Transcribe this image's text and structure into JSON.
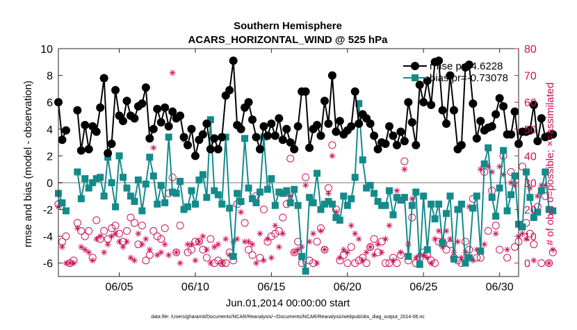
{
  "chart_data": {
    "type": "line",
    "title": [
      "Southern Hemisphere",
      "ACARS_HORIZONTAL_WIND @ 525 hPa"
    ],
    "xlabel": "Jun.01,2014 00:00:00 start",
    "ylabel": "rmse and bias (model - observation)",
    "y2label": "# of obs: o=possible; ×=assimilated",
    "footnote": "data file: /Users/gharamti/Documents/NCAR/Reanalysis/~/Documents/NCAR/Reanalysis/webpub/obs_diag_output_2014-06.nc",
    "xlim": [
      1.0,
      31.25
    ],
    "ylim": [
      -7,
      10
    ],
    "y2lim": [
      -5,
      80
    ],
    "x_ticks": [
      {
        "value": 5,
        "label": "06/05"
      },
      {
        "value": 10,
        "label": "06/10"
      },
      {
        "value": 15,
        "label": "06/15"
      },
      {
        "value": 20,
        "label": "06/20"
      },
      {
        "value": 25,
        "label": "06/25"
      },
      {
        "value": 30,
        "label": "06/30"
      }
    ],
    "y_ticks": [
      -6,
      -4,
      -2,
      0,
      2,
      4,
      6,
      8,
      10
    ],
    "y2_ticks": [
      0,
      10,
      20,
      30,
      40,
      50,
      60,
      70,
      80
    ],
    "legend_position": "top-right",
    "colors": {
      "rmse": "#000000",
      "bias": "#148a8a",
      "obs": "#cc1155",
      "zero_line": "#bbbbbb"
    },
    "time_start": 1.0,
    "time_step": 0.25,
    "series": [
      {
        "name": "rmse pr=4.6228",
        "values": [
          6.0,
          3.2,
          3.9,
          null,
          null,
          5.4,
          2.4,
          4.3,
          2.5,
          4.2,
          3.8,
          5.6,
          7.8,
          2.2,
          2.9,
          6.9,
          5.0,
          4.6,
          6.1,
          5.0,
          4.8,
          5.7,
          5.9,
          7.1,
          3.3,
          4.0,
          5.5,
          4.5,
          5.6,
          4.2,
          5.3,
          4.8,
          5.0,
          3.4,
          2.8,
          4.0,
          2.0,
          3.2,
          3.6,
          4.4,
          2.5,
          3.3,
          2.5,
          3.4,
          6.5,
          6.9,
          9.1,
          4.3,
          4.0,
          5.6,
          6.0,
          4.7,
          3.4,
          2.5,
          4.2,
          3.5,
          4.4,
          3.5,
          4.8,
          3.2,
          4.0,
          3.0,
          2.5,
          4.2,
          6.8,
          6.8,
          2.6,
          4.0,
          4.3,
          3.5,
          6.1,
          4.4,
          8.0,
          3.8,
          4.6,
          3.6,
          3.9,
          4.2,
          6.8,
          4.4,
          5.1,
          4.8,
          4.4,
          3.5,
          2.5,
          3.0,
          2.9,
          4.2,
          3.5,
          2.8,
          3.8,
          3.1,
          6.0,
          4.5,
          2.8,
          7.3,
          6.0,
          7.6,
          5.8,
          9.0,
          9.1,
          5.4,
          4.4,
          8.0,
          5.4,
          2.5,
          2.8,
          8.6,
          8.8,
          5.9,
          3.3,
          4.6,
          3.9,
          4.1,
          4.2,
          5.1,
          6.3,
          5.7,
          3.6,
          3.6,
          5.3,
          2.9,
          3.8,
          3.8,
          3.9,
          5.8,
          3.1,
          4.8,
          3.4,
          3.5,
          3.6
        ]
      },
      {
        "name": "bias pr=-0.73078",
        "values": [
          -0.8,
          -1.5,
          -2.1,
          null,
          null,
          0.8,
          -1.2,
          0.3,
          -0.4,
          0.0,
          0.3,
          0.4,
          -1.0,
          1.9,
          0.0,
          -1.8,
          2.0,
          0.4,
          -0.4,
          -1.0,
          -1.4,
          0.2,
          -2.1,
          -0.1,
          1.9,
          0.5,
          -1.6,
          -0.2,
          -1.5,
          3.4,
          -0.7,
          -0.8,
          0.1,
          -2.0,
          -1.8,
          -0.6,
          -1.6,
          0.2,
          0.6,
          -1.1,
          4.7,
          -0.6,
          -0.9,
          -1.6,
          3.4,
          -1.9,
          -5.5,
          -0.8,
          -1.4,
          3.3,
          -0.4,
          -1.2,
          -1.5,
          -0.7,
          3.4,
          -0.5,
          0.3,
          -1.7,
          -0.7,
          -0.8,
          -0.6,
          -1.5,
          -0.5,
          -1.7,
          -5.5,
          -6.6,
          -1.1,
          -1.5,
          0.7,
          -2.0,
          -1.6,
          -1.4,
          -1.6,
          -2.6,
          -2.8,
          -1.0,
          -1.7,
          -1.2,
          0.4,
          5.9,
          1.7,
          -0.4,
          -0.2,
          -0.8,
          -1.4,
          -1.7,
          -1.7,
          -0.6,
          -2.4,
          -1.1,
          -1.3,
          -1.1,
          -5.5,
          -1.7,
          -0.7,
          -6.1,
          -1.0,
          -5.0,
          -1.6,
          -2.7,
          -1.6,
          -4.5,
          -2.3,
          -1.0,
          -5.7,
          -2.0,
          -1.6,
          -6.0,
          -5.6,
          -1.9,
          -1.0,
          -5.1,
          1.4,
          2.6,
          -1.1,
          -2.5,
          -0.4,
          2.4,
          -2.1,
          -0.9,
          0.5,
          -3.1,
          -3.3,
          0.8,
          -1.1,
          -2.6,
          -2.2,
          -0.6,
          0.8,
          -2.0,
          -2.1
        ]
      },
      {
        "name": "obs possible",
        "axis": "right",
        "values": [
          22,
          8,
          10,
          0,
          1,
          15,
          12,
          10,
          12,
          2,
          16,
          9,
          12,
          9,
          13,
          14,
          11,
          8,
          12,
          17,
          15,
          7,
          14,
          1,
          3,
          12,
          10,
          9,
          13,
          26,
          32,
          4,
          14,
          47,
          4,
          5,
          8,
          8,
          5,
          2,
          9,
          0,
          1,
          0,
          0,
          4,
          1,
          22,
          50,
          15,
          5,
          3,
          25,
          2,
          20,
          8,
          10,
          11,
          12,
          17,
          22,
          39,
          4,
          8,
          0,
          32,
          1,
          0,
          8,
          13,
          5,
          28,
          44,
          20,
          1,
          3,
          0,
          6,
          0,
          1,
          2,
          0,
          6,
          9,
          4,
          8,
          0,
          0,
          2,
          0,
          3,
          38,
          1,
          17,
          0,
          2,
          4,
          3,
          1,
          0,
          8,
          8,
          5,
          7,
          2,
          1,
          0,
          8,
          5,
          24,
          2,
          2,
          34,
          12,
          27,
          14,
          5,
          40,
          2,
          34,
          6,
          8,
          36,
          15,
          11,
          7,
          21,
          0,
          25,
          0,
          4
        ]
      },
      {
        "name": "obs assimilated",
        "axis": "right",
        "values": [
          21,
          6,
          0,
          0,
          0,
          13,
          6,
          5,
          4,
          1,
          9,
          10,
          4,
          7,
          10,
          11,
          8,
          6,
          8,
          2,
          1,
          11,
          7,
          9,
          5,
          43,
          3,
          4,
          7,
          3,
          71,
          4,
          0,
          46,
          7,
          7,
          1,
          8,
          10,
          5,
          0,
          6,
          7,
          0,
          9,
          3,
          8,
          9,
          19,
          8,
          8,
          7,
          0,
          11,
          1,
          9,
          2,
          14,
          6,
          11,
          26,
          25,
          4,
          5,
          6,
          29,
          8,
          11,
          0,
          12,
          5,
          26,
          40,
          19,
          2,
          5,
          4,
          14,
          11,
          9,
          1,
          4,
          6,
          3,
          7,
          4,
          9,
          14,
          1,
          27,
          4,
          35,
          7,
          24,
          2,
          3,
          3,
          2,
          0,
          9,
          12,
          6,
          12,
          9,
          4,
          8,
          2,
          4,
          21,
          1,
          5,
          35,
          7,
          36,
          34,
          11,
          36,
          33,
          5,
          30,
          29,
          10,
          11,
          9,
          28,
          1,
          25,
          29,
          29,
          0,
          5
        ]
      }
    ]
  }
}
